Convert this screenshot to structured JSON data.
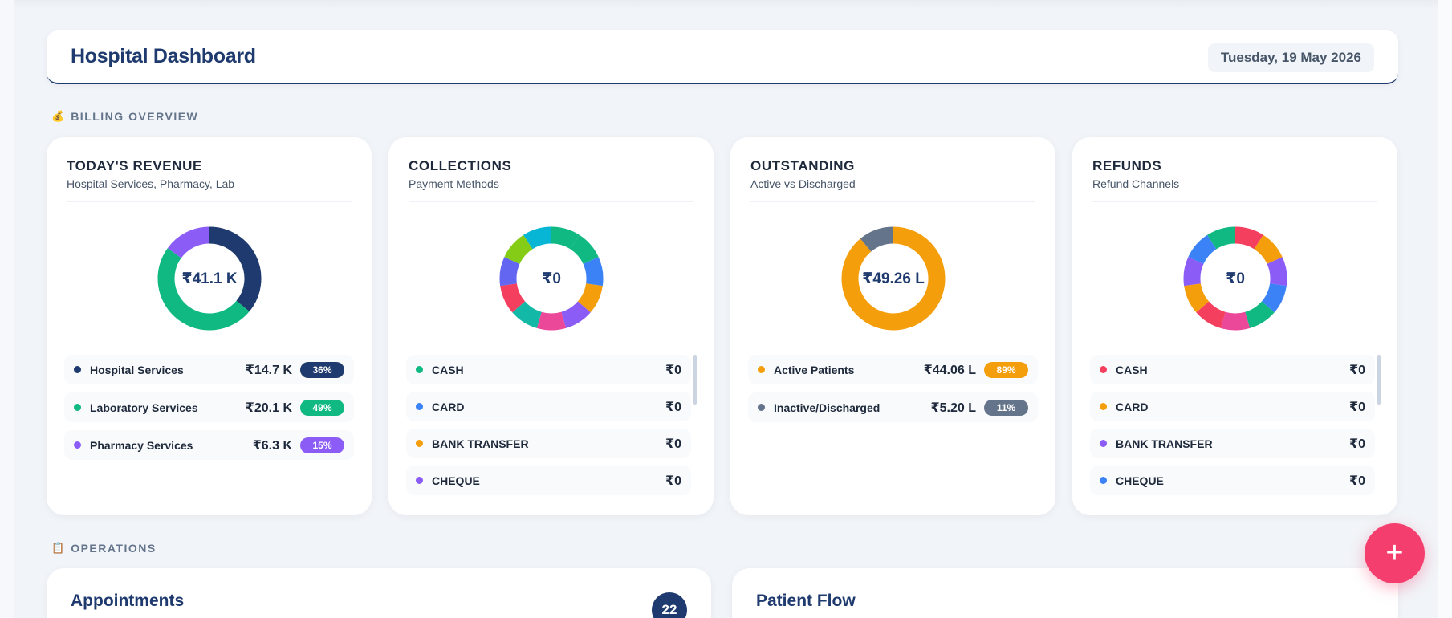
{
  "header": {
    "title": "Hospital Dashboard",
    "date": "Tuesday, 19 May 2026"
  },
  "sections": {
    "billing": {
      "label": "BILLING OVERVIEW",
      "icon": "money-bag-icon"
    },
    "operations": {
      "label": "OPERATIONS",
      "icon": "clipboard-icon"
    }
  },
  "cards": [
    {
      "title": "TODAY'S REVENUE",
      "subtitle": "Hospital Services, Pharmacy, Lab",
      "center": "₹41.1 K",
      "items": [
        {
          "label": "Hospital Services",
          "amount": "₹14.7 K",
          "pct": "36%",
          "color": "#1e3a6e"
        },
        {
          "label": "Laboratory Services",
          "amount": "₹20.1 K",
          "pct": "49%",
          "color": "#10b981"
        },
        {
          "label": "Pharmacy Services",
          "amount": "₹6.3 K",
          "pct": "15%",
          "color": "#8b5cf6"
        }
      ]
    },
    {
      "title": "COLLECTIONS",
      "subtitle": "Payment Methods",
      "center": "₹0",
      "items": [
        {
          "label": "CASH",
          "amount": "₹0",
          "color": "#10b981"
        },
        {
          "label": "CARD",
          "amount": "₹0",
          "color": "#3b82f6"
        },
        {
          "label": "BANK TRANSFER",
          "amount": "₹0",
          "color": "#f59e0b"
        },
        {
          "label": "CHEQUE",
          "amount": "₹0",
          "color": "#8b5cf6"
        }
      ]
    },
    {
      "title": "OUTSTANDING",
      "subtitle": "Active vs Discharged",
      "center": "₹49.26 L",
      "items": [
        {
          "label": "Active Patients",
          "amount": "₹44.06 L",
          "pct": "89%",
          "color": "#f59e0b"
        },
        {
          "label": "Inactive/Discharged",
          "amount": "₹5.20 L",
          "pct": "11%",
          "color": "#64748b"
        }
      ]
    },
    {
      "title": "REFUNDS",
      "subtitle": "Refund Channels",
      "center": "₹0",
      "items": [
        {
          "label": "CASH",
          "amount": "₹0",
          "color": "#f43f5e"
        },
        {
          "label": "CARD",
          "amount": "₹0",
          "color": "#f59e0b"
        },
        {
          "label": "BANK TRANSFER",
          "amount": "₹0",
          "color": "#8b5cf6"
        },
        {
          "label": "CHEQUE",
          "amount": "₹0",
          "color": "#3b82f6"
        }
      ]
    }
  ],
  "donuts": [
    {
      "segments": [
        {
          "value": 36,
          "color": "#1e3a6e"
        },
        {
          "value": 49,
          "color": "#10b981"
        },
        {
          "value": 15,
          "color": "#8b5cf6"
        }
      ]
    },
    {
      "segments": [
        {
          "value": 1,
          "color": "#10b981"
        },
        {
          "value": 1,
          "color": "#10b981"
        },
        {
          "value": 1,
          "color": "#3b82f6"
        },
        {
          "value": 1,
          "color": "#f59e0b"
        },
        {
          "value": 1,
          "color": "#8b5cf6"
        },
        {
          "value": 1,
          "color": "#ec4899"
        },
        {
          "value": 1,
          "color": "#14b8a6"
        },
        {
          "value": 1,
          "color": "#f43f5e"
        },
        {
          "value": 1,
          "color": "#6366f1"
        },
        {
          "value": 1,
          "color": "#84cc16"
        },
        {
          "value": 1,
          "color": "#06b6d4"
        }
      ]
    },
    {
      "segments": [
        {
          "value": 89,
          "color": "#f59e0b"
        },
        {
          "value": 11,
          "color": "#64748b"
        }
      ]
    },
    {
      "segments": [
        {
          "value": 1,
          "color": "#f43f5e"
        },
        {
          "value": 1,
          "color": "#f59e0b"
        },
        {
          "value": 1,
          "color": "#8b5cf6"
        },
        {
          "value": 1,
          "color": "#3b82f6"
        },
        {
          "value": 1,
          "color": "#10b981"
        },
        {
          "value": 1,
          "color": "#ec4899"
        },
        {
          "value": 1,
          "color": "#f43f5e"
        },
        {
          "value": 1,
          "color": "#f59e0b"
        },
        {
          "value": 1,
          "color": "#8b5cf6"
        },
        {
          "value": 1,
          "color": "#3b82f6"
        },
        {
          "value": 1,
          "color": "#10b981"
        }
      ]
    }
  ],
  "operations": {
    "appointments": {
      "title": "Appointments",
      "count": "22"
    },
    "patient_flow": {
      "title": "Patient Flow"
    }
  },
  "fab": {
    "icon": "plus-icon",
    "symbol": "+"
  }
}
